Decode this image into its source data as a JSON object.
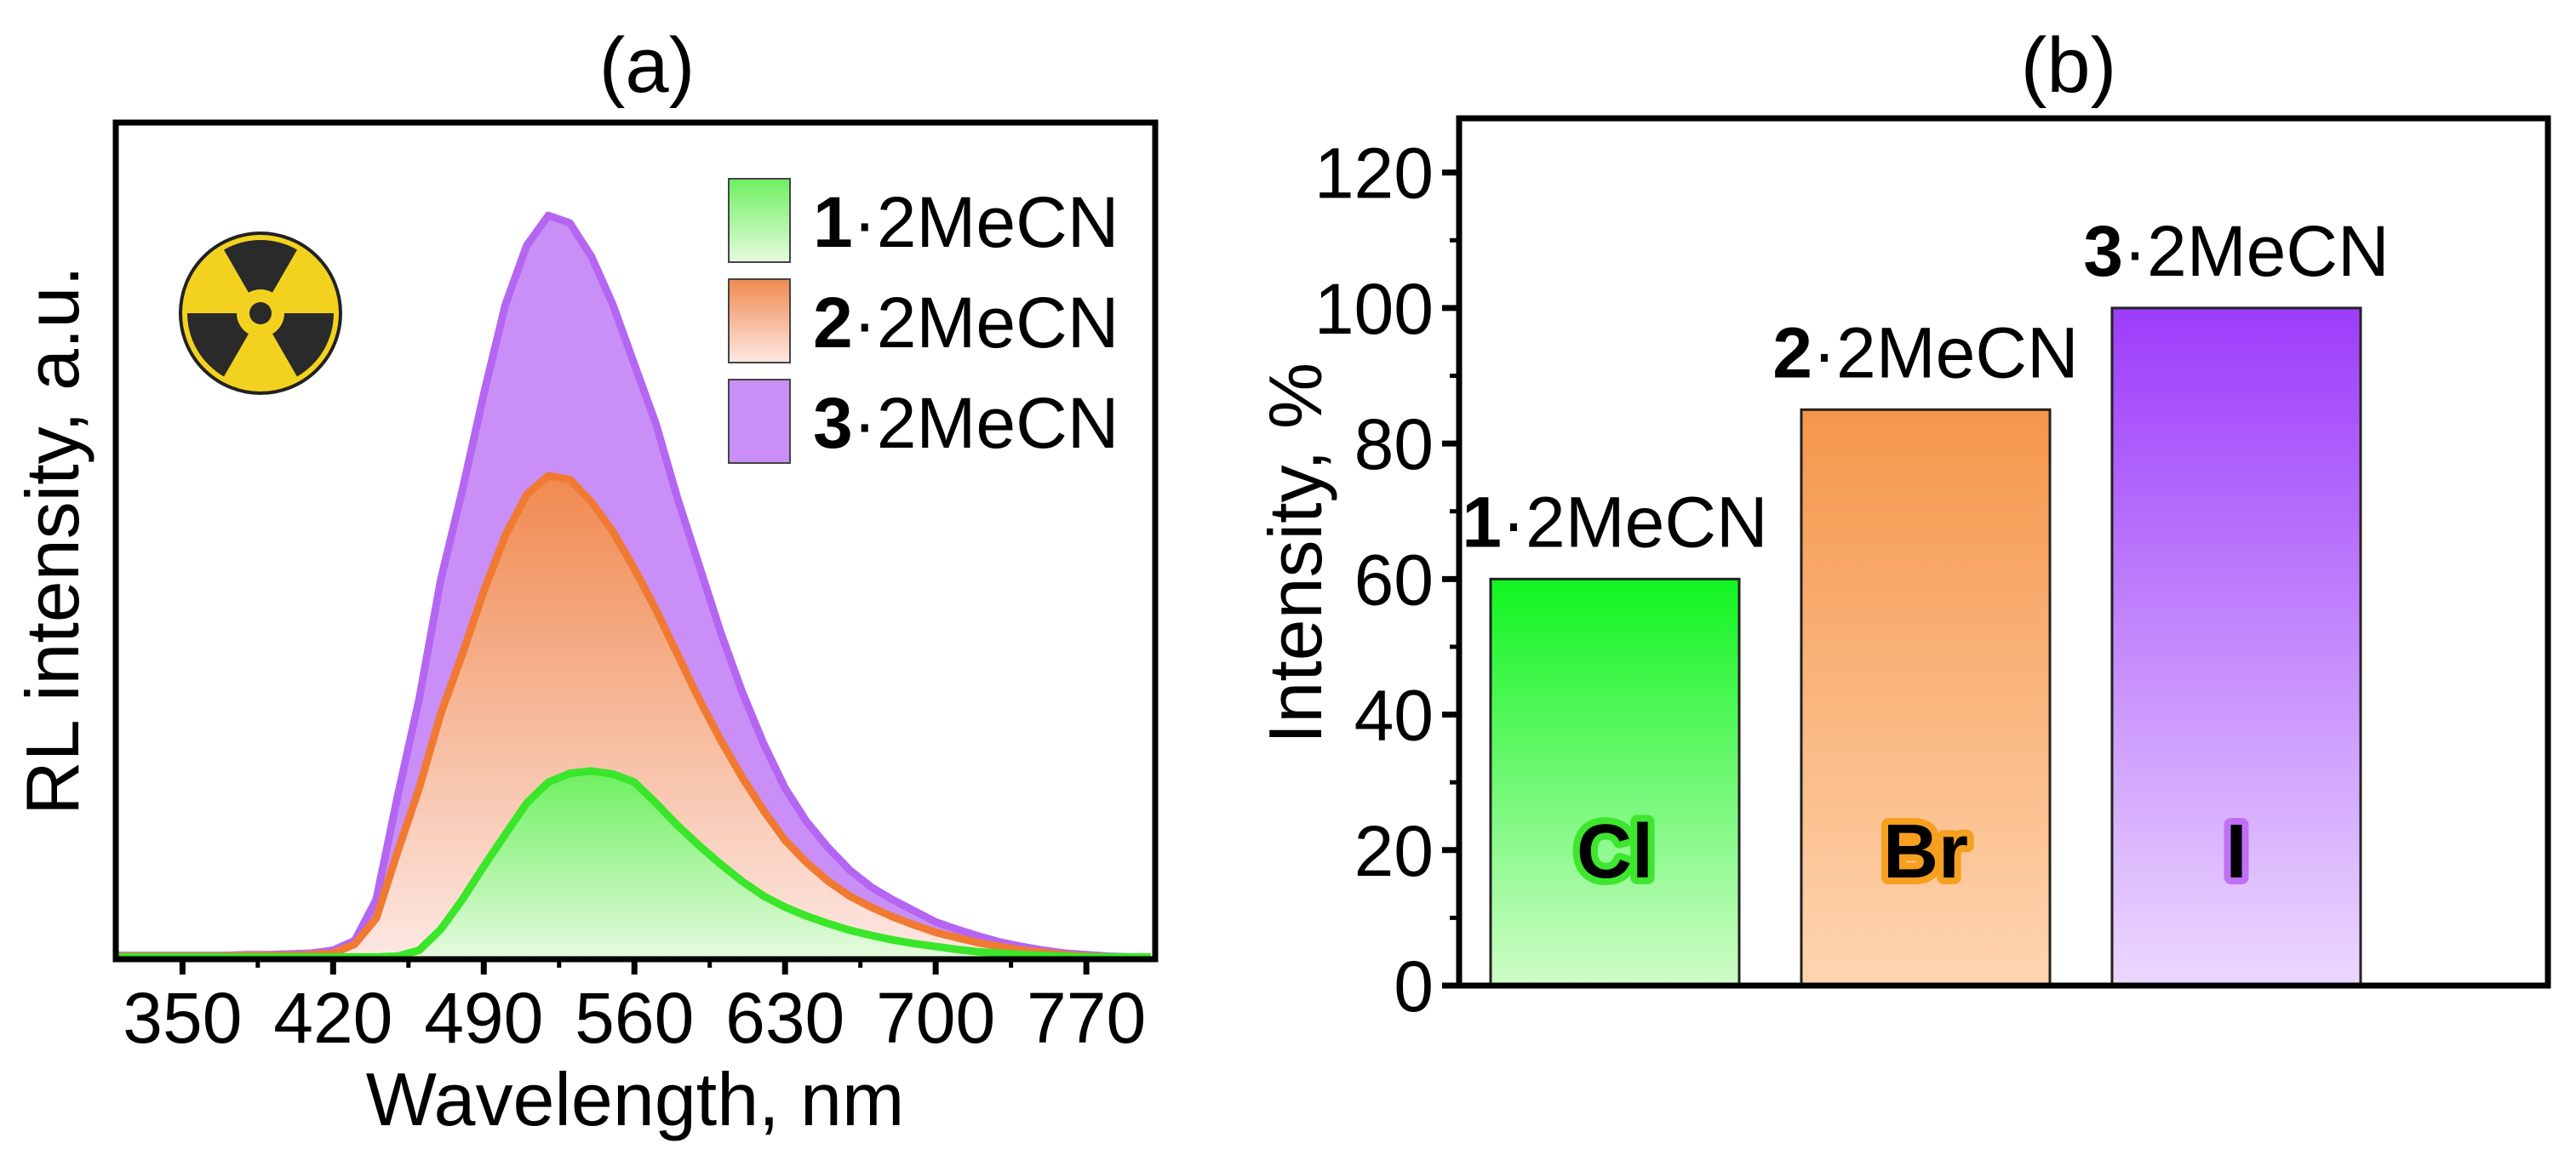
{
  "chart_data": [
    {
      "type": "area",
      "panel_label": "(a)",
      "xlabel": "Wavelength, nm",
      "ylabel": "RL intensity, a.u.",
      "xlim": [
        319,
        802
      ],
      "ylim": [
        0,
        1.125
      ],
      "xticks": [
        350,
        420,
        490,
        560,
        630,
        700,
        770
      ],
      "xtick_labels": [
        "350",
        "420",
        "490",
        "560",
        "630",
        "700",
        "770"
      ],
      "legend_position": "top-right",
      "icon": "radiation-icon",
      "x": [
        320,
        330,
        340,
        350,
        360,
        370,
        380,
        390,
        400,
        410,
        420,
        430,
        440,
        450,
        460,
        470,
        480,
        490,
        500,
        510,
        520,
        530,
        540,
        550,
        560,
        570,
        580,
        590,
        600,
        610,
        620,
        630,
        640,
        650,
        660,
        670,
        680,
        690,
        700,
        710,
        720,
        730,
        740,
        750,
        760,
        770,
        780,
        790,
        800
      ],
      "series": [
        {
          "name_bold": "3",
          "name_rest": "·2MeCN",
          "color": "#b466f2",
          "fill_top": "#c98ff7",
          "fill_bottom": "#c98ff7",
          "values": [
            0.005,
            0.005,
            0.005,
            0.005,
            0.005,
            0.005,
            0.006,
            0.006,
            0.007,
            0.008,
            0.012,
            0.025,
            0.08,
            0.22,
            0.35,
            0.51,
            0.63,
            0.76,
            0.88,
            0.96,
            1.0,
            0.99,
            0.945,
            0.88,
            0.8,
            0.72,
            0.62,
            0.53,
            0.44,
            0.36,
            0.29,
            0.23,
            0.185,
            0.15,
            0.12,
            0.097,
            0.08,
            0.065,
            0.05,
            0.04,
            0.031,
            0.023,
            0.017,
            0.012,
            0.008,
            0.006,
            0.004,
            0.003,
            0.002
          ]
        },
        {
          "name_bold": "2",
          "name_rest": "·2MeCN",
          "color": "#f07a32",
          "fill_top": "#f08a50",
          "fill_bottom": "#fde8e4",
          "values": [
            0.004,
            0.004,
            0.004,
            0.004,
            0.004,
            0.004,
            0.005,
            0.005,
            0.005,
            0.006,
            0.008,
            0.02,
            0.055,
            0.145,
            0.23,
            0.33,
            0.41,
            0.495,
            0.57,
            0.625,
            0.65,
            0.645,
            0.615,
            0.575,
            0.525,
            0.47,
            0.41,
            0.35,
            0.295,
            0.245,
            0.2,
            0.16,
            0.13,
            0.105,
            0.085,
            0.07,
            0.057,
            0.046,
            0.036,
            0.029,
            0.022,
            0.017,
            0.012,
            0.009,
            0.006,
            0.004,
            0.003,
            0.002,
            0.001
          ]
        },
        {
          "name_bold": "1",
          "name_rest": "·2MeCN",
          "color": "#3ae62a",
          "fill_top": "#6ef060",
          "fill_bottom": "#e6fae0",
          "values": [
            0.003,
            0.003,
            0.003,
            0.003,
            0.003,
            0.003,
            0.003,
            0.003,
            0.003,
            0.003,
            0.003,
            0.003,
            0.003,
            0.004,
            0.012,
            0.04,
            0.08,
            0.125,
            0.168,
            0.21,
            0.238,
            0.25,
            0.253,
            0.249,
            0.238,
            0.21,
            0.18,
            0.153,
            0.128,
            0.105,
            0.085,
            0.07,
            0.058,
            0.048,
            0.039,
            0.032,
            0.026,
            0.021,
            0.017,
            0.013,
            0.01,
            0.008,
            0.006,
            0.005,
            0.004,
            0.003,
            0.003,
            0.003,
            0.003
          ]
        }
      ]
    },
    {
      "type": "bar",
      "panel_label": "(b)",
      "ylabel": "Intensity, %",
      "xlabel": "",
      "ylim": [
        0,
        128
      ],
      "yticks": [
        0,
        20,
        40,
        60,
        80,
        100,
        120
      ],
      "ytick_labels": [
        "0",
        "20",
        "40",
        "60",
        "80",
        "100",
        "120"
      ],
      "categories": [
        "Cl",
        "Br",
        "I"
      ],
      "values": [
        60,
        85,
        100
      ],
      "bar_labels": [
        {
          "bold": "1",
          "rest": "·2MeCN"
        },
        {
          "bold": "2",
          "rest": "·2MeCN"
        },
        {
          "bold": "3",
          "rest": "·2MeCN"
        }
      ],
      "colors_top": [
        "#10f520",
        "#f5964a",
        "#9d3cfb"
      ],
      "colors_bottom": [
        "#d0fcc8",
        "#fed5b0",
        "#ecd8ff"
      ],
      "glow_colors": [
        "#3ee62e",
        "#f7a020",
        "#c070f5"
      ]
    }
  ]
}
